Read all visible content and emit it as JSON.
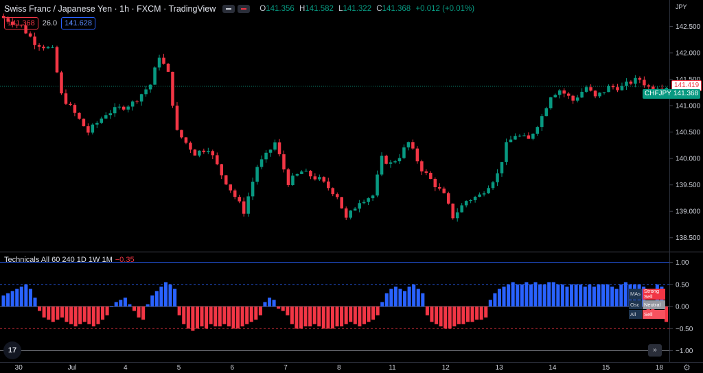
{
  "header": {
    "symbol": "Swiss Franc / Japanese Yen",
    "interval": "1h",
    "exchange": "FXCM",
    "source": "TradingView",
    "ohlc": {
      "o_label": "O",
      "o": "141.356",
      "h_label": "H",
      "h": "141.582",
      "l_label": "L",
      "l": "141.322",
      "c_label": "C",
      "c": "141.368",
      "change": "+0.012 (+0.01%)"
    },
    "bid": "141.368",
    "spread": "26.0",
    "ask": "141.628",
    "currency": "JPY"
  },
  "indicator": {
    "label": "Technicals All 60 240 1D 1W 1M",
    "value": "−0.35"
  },
  "signals": [
    {
      "label": "MAs",
      "value": "Strong Sell",
      "color": "#f23645"
    },
    {
      "label": "Osc",
      "value": "Neutral",
      "color": "#9598a1"
    },
    {
      "label": "All",
      "value": "Sell",
      "color": "#f7525f"
    }
  ],
  "price_labels": {
    "high_line": "141.419",
    "current_symbol": "CHFJPY",
    "current": "141.368"
  },
  "colors": {
    "up": "#089981",
    "down": "#f23645",
    "bull_bar": "#2962ff",
    "bear_bar": "#f23645",
    "background": "#000000"
  },
  "icons": {
    "logo": "tradingview-logo-icon",
    "goto": "double-chevron-right-icon",
    "settings": "gear-icon"
  },
  "chart_data": [
    {
      "type": "candlestick",
      "y_ticks": [
        138.5,
        139.0,
        139.5,
        140.0,
        140.5,
        141.0,
        141.5,
        142.0,
        142.5
      ],
      "y_tick_labels": [
        "138.500",
        "139.000",
        "139.500",
        "140.000",
        "140.500",
        "141.000",
        "141.500",
        "142.000",
        "142.500"
      ],
      "ylim": [
        138.25,
        143.0
      ],
      "x_tick_labels": [
        "30",
        "Jul",
        "4",
        "5",
        "6",
        "7",
        "8",
        "11",
        "12",
        "13",
        "14",
        "15",
        "18"
      ],
      "x_tick_index": [
        0,
        12,
        24,
        36,
        48,
        60,
        72,
        84,
        96,
        108,
        120,
        132,
        144
      ],
      "anchors": [
        [
          0,
          142.7
        ],
        [
          5,
          142.5
        ],
        [
          8,
          142.2
        ],
        [
          12,
          142.05
        ],
        [
          14,
          141.2
        ],
        [
          20,
          140.5
        ],
        [
          24,
          140.85
        ],
        [
          30,
          141.05
        ],
        [
          34,
          141.4
        ],
        [
          36,
          141.95
        ],
        [
          38,
          141.6
        ],
        [
          40,
          140.5
        ],
        [
          44,
          140.1
        ],
        [
          47,
          140.2
        ],
        [
          50,
          139.7
        ],
        [
          55,
          139.0
        ],
        [
          58,
          139.85
        ],
        [
          60,
          140.05
        ],
        [
          62,
          140.3
        ],
        [
          65,
          139.55
        ],
        [
          68,
          139.75
        ],
        [
          72,
          139.6
        ],
        [
          76,
          139.3
        ],
        [
          78,
          138.85
        ],
        [
          81,
          139.2
        ],
        [
          84,
          139.3
        ],
        [
          86,
          140.0
        ],
        [
          88,
          139.9
        ],
        [
          90,
          140.05
        ],
        [
          92,
          140.3
        ],
        [
          95,
          139.8
        ],
        [
          97,
          139.6
        ],
        [
          100,
          139.3
        ],
        [
          102,
          138.9
        ],
        [
          105,
          139.2
        ],
        [
          108,
          139.3
        ],
        [
          112,
          139.7
        ],
        [
          114,
          140.25
        ],
        [
          116,
          140.45
        ],
        [
          119,
          140.35
        ],
        [
          122,
          140.8
        ],
        [
          124,
          141.2
        ],
        [
          126,
          141.3
        ],
        [
          129,
          141.1
        ],
        [
          132,
          141.35
        ],
        [
          134,
          141.15
        ],
        [
          137,
          141.35
        ],
        [
          140,
          141.35
        ],
        [
          142,
          141.45
        ],
        [
          144,
          141.5
        ],
        [
          146,
          141.35
        ],
        [
          148,
          141.368
        ]
      ],
      "technicals": [
        0.25,
        0.3,
        0.35,
        0.4,
        0.45,
        0.5,
        0.4,
        0.2,
        -0.1,
        -0.25,
        -0.3,
        -0.35,
        -0.3,
        -0.25,
        -0.35,
        -0.4,
        -0.45,
        -0.4,
        -0.35,
        -0.4,
        -0.45,
        -0.4,
        -0.3,
        -0.2,
        0.0,
        0.1,
        0.15,
        0.2,
        0.05,
        -0.1,
        -0.25,
        -0.3,
        0.05,
        0.25,
        0.35,
        0.45,
        0.55,
        0.5,
        0.4,
        -0.2,
        -0.4,
        -0.5,
        -0.55,
        -0.5,
        -0.45,
        -0.5,
        -0.4,
        -0.45,
        -0.45,
        -0.4,
        -0.45,
        -0.5,
        -0.5,
        -0.45,
        -0.4,
        -0.35,
        -0.3,
        -0.2,
        0.1,
        0.2,
        0.15,
        -0.05,
        -0.1,
        -0.2,
        -0.4,
        -0.5,
        -0.5,
        -0.45,
        -0.45,
        -0.4,
        -0.45,
        -0.5,
        -0.5,
        -0.5,
        -0.45,
        -0.45,
        -0.4,
        -0.35,
        -0.4,
        -0.45,
        -0.4,
        -0.35,
        -0.3,
        -0.2,
        0.1,
        0.3,
        0.4,
        0.45,
        0.4,
        0.35,
        0.45,
        0.5,
        0.4,
        0.3,
        -0.2,
        -0.35,
        -0.4,
        -0.45,
        -0.5,
        -0.5,
        -0.45,
        -0.4,
        -0.4,
        -0.35,
        -0.35,
        -0.3,
        -0.3,
        -0.25,
        0.15,
        0.3,
        0.4,
        0.45,
        0.5,
        0.55,
        0.5,
        0.5,
        0.55,
        0.5,
        0.55,
        0.5,
        0.5,
        0.55,
        0.55,
        0.5,
        0.5,
        0.45,
        0.5,
        0.5,
        0.5,
        0.45,
        0.5,
        0.45,
        0.5,
        0.5,
        0.5,
        0.45,
        0.4,
        0.5,
        0.55,
        0.5,
        0.5,
        0.5,
        0.45,
        -0.1,
        -0.1,
        0.5,
        0.45,
        -0.35
      ],
      "technicals_ylim": [
        -1.0,
        1.0
      ],
      "technicals_ticks": [
        1.0,
        0.5,
        0.0,
        -0.5,
        -1.0
      ],
      "technicals_tick_labels": [
        "1.00",
        "0.50",
        "0.00",
        "−0.50",
        "−1.00"
      ]
    }
  ]
}
